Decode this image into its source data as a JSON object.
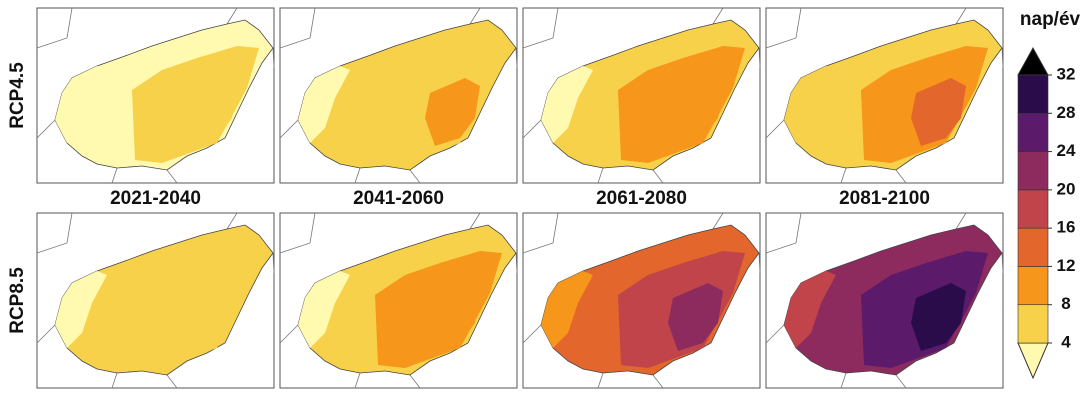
{
  "rows": [
    "RCP4.5",
    "RCP8.5"
  ],
  "periods": [
    "2021-2040",
    "2041-2060",
    "2061-2080",
    "2081-2100"
  ],
  "legend": {
    "unit": "nap/év",
    "ticks": [
      4,
      8,
      12,
      16,
      20,
      24,
      28,
      32
    ],
    "colors": [
      "#fffab0",
      "#f8d14a",
      "#f6961a",
      "#e3662d",
      "#c0444a",
      "#8e2b5e",
      "#5c1a6b",
      "#2b0c4a",
      "#000000"
    ]
  }
}
